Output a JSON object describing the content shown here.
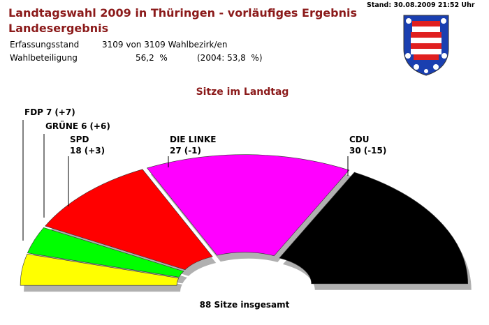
{
  "header": {
    "title": "Landtagswahl 2009 in Thüringen - vorläufiges Ergebnis",
    "subtitle": "Landesergebnis",
    "stand": "Stand: 30.08.2009  21:52 Uhr",
    "rows": [
      [
        "Erfassungsstand",
        "3109 von 3109 Wahlbezirk/en",
        ""
      ],
      [
        "Wahlbeteiligung",
        "56,2  %",
        "(2004: 53,8  %)"
      ]
    ]
  },
  "chart_data": {
    "type": "parliament",
    "title": "Sitze im Landtag",
    "total_label": "88 Sitze insgesamt",
    "categories": [
      "FDP",
      "GRÜNE",
      "SPD",
      "DIE LINKE",
      "CDU"
    ],
    "values": [
      7,
      6,
      18,
      27,
      30
    ],
    "changes": [
      {
        "value": 7,
        "label": "(+7)"
      },
      {
        "value": 6,
        "label": "(+6)"
      },
      {
        "value": 3,
        "label": "(+3)"
      },
      {
        "value": -1,
        "label": "(-1)"
      },
      {
        "value": -15,
        "label": "(-15)"
      }
    ],
    "colors": [
      "#ffff00",
      "#00ff00",
      "#ff0000",
      "#ff00ff",
      "#000000"
    ]
  }
}
